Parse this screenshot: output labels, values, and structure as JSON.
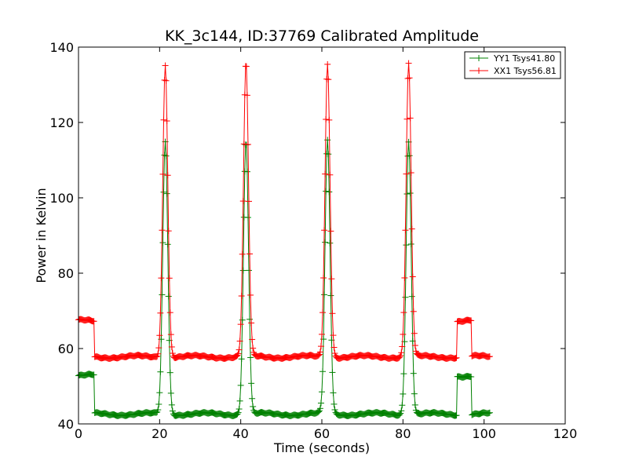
{
  "chart_data": {
    "type": "line",
    "title": "KK_3c144, ID:37769 Calibrated Amplitude",
    "xlabel": "Time (seconds)",
    "ylabel": "Power in Kelvin",
    "xlim": [
      0,
      120
    ],
    "ylim": [
      40,
      140
    ],
    "xticks": [
      "0",
      "20",
      "40",
      "60",
      "80",
      "100",
      "120"
    ],
    "yticks": [
      "40",
      "60",
      "80",
      "100",
      "120",
      "140"
    ],
    "grid": false,
    "legend_position": "top-right",
    "series": [
      {
        "name": "YY1 Tsys41.80",
        "color": "#008000",
        "base": 42.6,
        "high": 52.8,
        "peak": 115,
        "peak_centers": [
          21.4,
          41.3,
          61.4,
          81.4
        ],
        "high_segments": [
          [
            0,
            4
          ],
          [
            93.4,
            97
          ]
        ]
      },
      {
        "name": "XX1 Tsys56.81",
        "color": "#ff0000",
        "base": 57.8,
        "high": 67.3,
        "peak": 135.5,
        "peak_centers": [
          21.4,
          41.3,
          61.4,
          81.4
        ],
        "high_segments": [
          [
            0,
            4
          ],
          [
            93.4,
            97
          ]
        ]
      }
    ],
    "x_end": 101.5,
    "sample_step": 0.2
  }
}
